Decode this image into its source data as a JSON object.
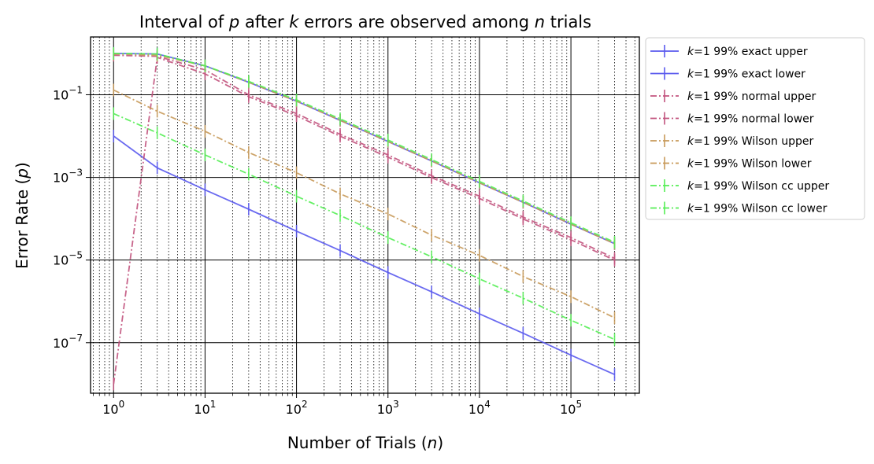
{
  "chart_data": {
    "type": "line",
    "title_parts": [
      "Interval of ",
      "p",
      " after ",
      "k",
      " errors are observed among ",
      "n",
      " trials"
    ],
    "xlabel_parts": [
      "Number of Trials (",
      "n",
      ")"
    ],
    "ylabel_parts": [
      "Error Rate (",
      "p",
      ")"
    ],
    "xscale": "log",
    "yscale": "log",
    "xlim": [
      0.56,
      560000
    ],
    "ylim": [
      6e-09,
      2.5
    ],
    "grid": "major solid black; minor dotted",
    "legend_position": "outside-right-top",
    "x_ticks": [
      {
        "base": "10",
        "exp": "0",
        "value": 1
      },
      {
        "base": "10",
        "exp": "1",
        "value": 10
      },
      {
        "base": "10",
        "exp": "2",
        "value": 100
      },
      {
        "base": "10",
        "exp": "3",
        "value": 1000
      },
      {
        "base": "10",
        "exp": "4",
        "value": 10000
      },
      {
        "base": "10",
        "exp": "5",
        "value": 100000
      }
    ],
    "y_ticks": [
      {
        "base": "10",
        "exp": "−1",
        "value": 0.1
      },
      {
        "base": "10",
        "exp": "−3",
        "value": 0.001
      },
      {
        "base": "10",
        "exp": "−5",
        "value": 1e-05
      },
      {
        "base": "10",
        "exp": "−7",
        "value": 1e-07
      }
    ],
    "x": [
      1,
      3,
      10,
      30,
      100,
      300,
      1000,
      3000,
      10000,
      30000,
      100000,
      300000
    ],
    "series": [
      {
        "k_label": "k",
        "name": "=1 99% exact upper",
        "color": "#5a5aee",
        "dash": "",
        "error_bar_caps": true,
        "values": [
          1.0,
          0.97,
          0.5,
          0.2,
          0.07,
          0.024,
          0.0074,
          0.0025,
          0.00074,
          0.00025,
          7.4e-05,
          2.5e-05
        ]
      },
      {
        "k_label": "k",
        "name": "=1 99% exact lower",
        "color": "#5a5aee",
        "dash": "",
        "error_bar_caps": true,
        "values": [
          0.01,
          0.0017,
          0.0005,
          0.00017,
          5e-05,
          1.7e-05,
          5e-06,
          1.7e-06,
          5e-07,
          1.7e-07,
          5e-08,
          1.7e-08
        ]
      },
      {
        "k_label": "k",
        "name": "=1 99% normal upper",
        "color": "#c2547e",
        "dash": "8,3,2,3",
        "error_bar_caps": true,
        "values": [
          0.9,
          0.85,
          0.4,
          0.1,
          0.035,
          0.011,
          0.0035,
          0.0011,
          0.00035,
          0.00011,
          3.5e-05,
          1.1e-05
        ]
      },
      {
        "k_label": "k",
        "name": "=1 99% normal lower",
        "color": "#c2547e",
        "dash": "8,3,2,3",
        "error_bar_caps": true,
        "values": [
          1e-08,
          0.8,
          0.32,
          0.09,
          0.031,
          0.0099,
          0.0031,
          0.00099,
          0.00031,
          9.9e-05,
          3.1e-05,
          9.9e-06
        ]
      },
      {
        "k_label": "k",
        "name": "=1 99% Wilson upper",
        "color": "#c89a5a",
        "dash": "8,3,2,3",
        "error_bar_caps": true,
        "values": [
          0.97,
          0.9,
          0.5,
          0.2,
          0.07,
          0.024,
          0.0074,
          0.0025,
          0.00074,
          0.00025,
          7.4e-05,
          2.5e-05
        ]
      },
      {
        "k_label": "k",
        "name": "=1 99% Wilson lower",
        "color": "#c89a5a",
        "dash": "8,3,2,3",
        "error_bar_caps": true,
        "values": [
          0.13,
          0.04,
          0.013,
          0.004,
          0.0013,
          0.0004,
          0.00013,
          4e-05,
          1.3e-05,
          4e-06,
          1.3e-06,
          4e-07
        ]
      },
      {
        "k_label": "k",
        "name": "=1 99% Wilson cc upper",
        "color": "#55ee55",
        "dash": "8,3,2,3",
        "error_bar_caps": true,
        "values": [
          1.0,
          0.97,
          0.5,
          0.21,
          0.075,
          0.026,
          0.008,
          0.0027,
          0.0008,
          0.00027,
          8e-05,
          2.7e-05
        ]
      },
      {
        "k_label": "k",
        "name": "=1 99% Wilson cc lower",
        "color": "#55ee55",
        "dash": "8,3,2,3",
        "error_bar_caps": true,
        "values": [
          0.035,
          0.012,
          0.0035,
          0.0012,
          0.00035,
          0.00012,
          3.5e-05,
          1.2e-05,
          3.5e-06,
          1.2e-06,
          3.5e-07,
          1.2e-07
        ]
      }
    ]
  }
}
